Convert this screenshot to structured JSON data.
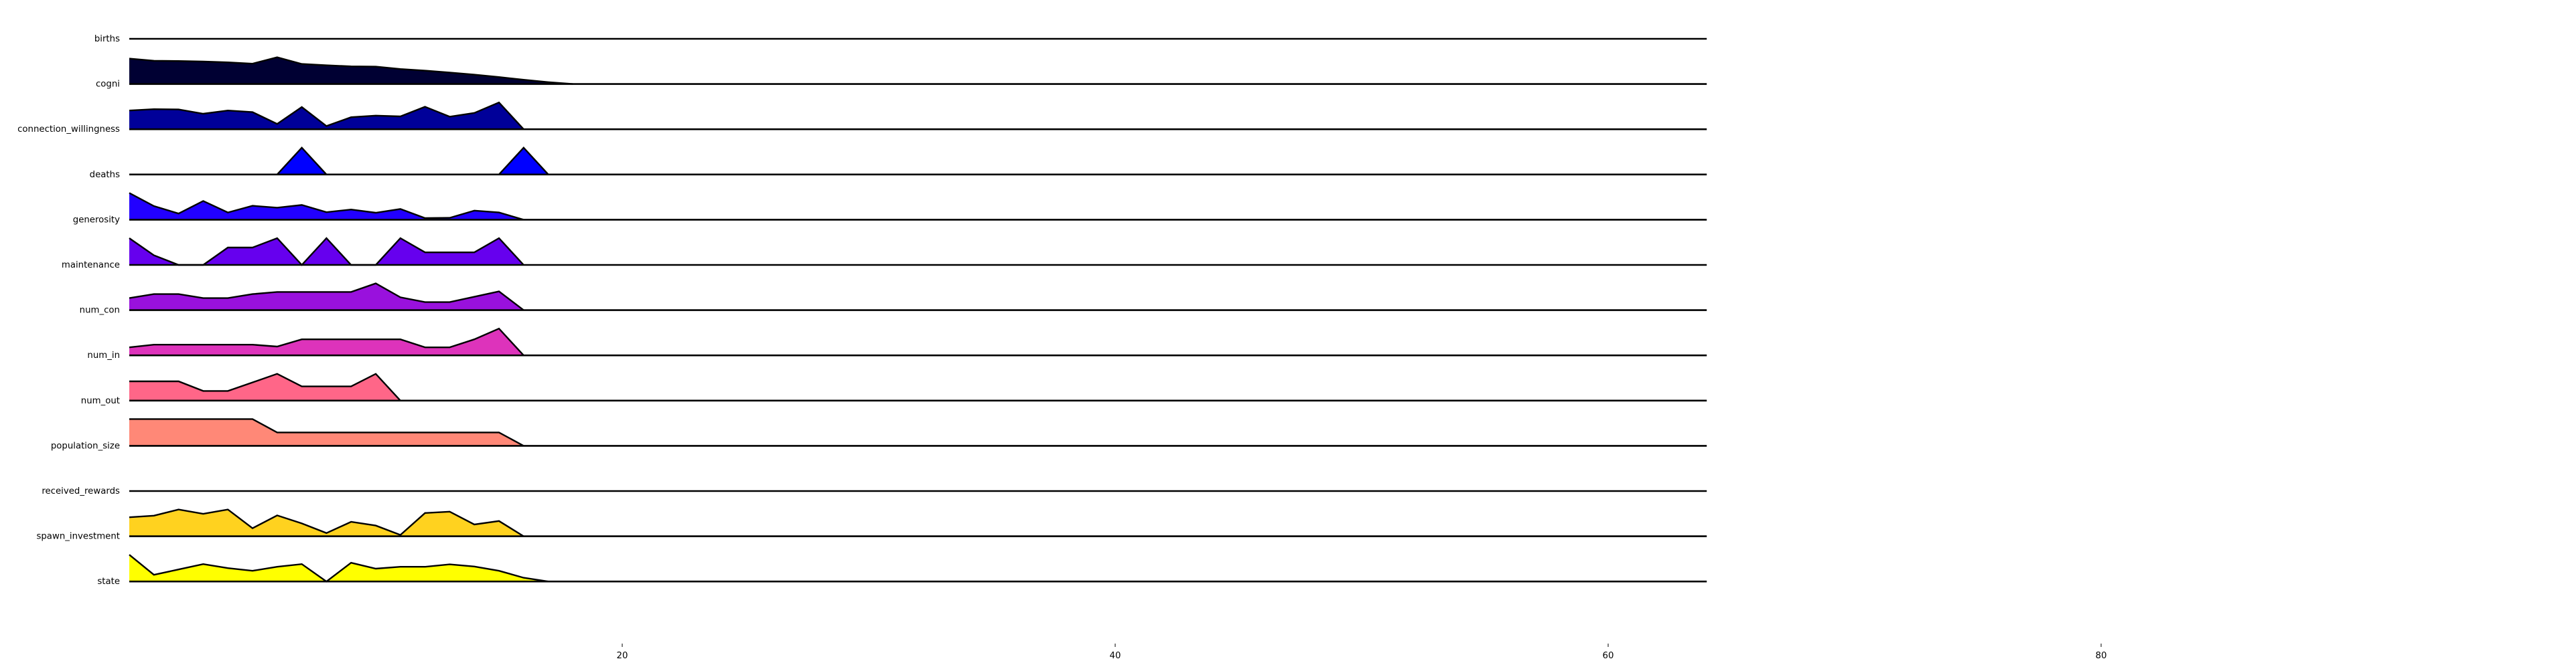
{
  "chart_data": {
    "type": "area",
    "title": "",
    "xlabel": "",
    "ylabel": "",
    "xlim": [
      0,
      98.3
    ],
    "x_ticks": [
      20,
      40,
      60,
      80
    ],
    "x_tick_labels": [
      "20",
      "40",
      "60",
      "80"
    ],
    "x_end": 64,
    "grid": false,
    "legend": "none",
    "series": [
      {
        "name": "births",
        "color": "#000066",
        "end": 64,
        "values": []
      },
      {
        "name": "cogni",
        "color": "#000033",
        "end": 64,
        "values": [
          0.95,
          0.87,
          0.86,
          0.84,
          0.81,
          0.76,
          1.0,
          0.75,
          0.7,
          0.66,
          0.65,
          0.56,
          0.5,
          0.43,
          0.35,
          0.26,
          0.16,
          0.07,
          0.0
        ]
      },
      {
        "name": "connection_willingness",
        "color": "#000099",
        "end": 64,
        "values": [
          0.7,
          0.75,
          0.74,
          0.58,
          0.7,
          0.64,
          0.2,
          0.83,
          0.12,
          0.45,
          0.51,
          0.48,
          0.84,
          0.47,
          0.61,
          1.0,
          0.0
        ]
      },
      {
        "name": "deaths",
        "color": "#0000ff",
        "end": 64,
        "values": [
          0,
          0,
          0,
          0,
          0,
          0,
          0,
          1.0,
          0,
          0,
          0,
          0,
          0,
          0,
          0,
          0,
          1.0,
          0
        ]
      },
      {
        "name": "generosity",
        "color": "#2200ff",
        "end": 64,
        "values": [
          1.0,
          0.51,
          0.23,
          0.7,
          0.27,
          0.52,
          0.45,
          0.55,
          0.28,
          0.38,
          0.26,
          0.4,
          0.06,
          0.07,
          0.34,
          0.27,
          0.0
        ]
      },
      {
        "name": "maintenance",
        "color": "#6600ee",
        "end": 64,
        "values": [
          1.0,
          0.36,
          0.0,
          0.0,
          0.65,
          0.65,
          1.0,
          0.0,
          1.0,
          0.0,
          0.0,
          1.0,
          0.47,
          0.47,
          0.47,
          1.0,
          0.0
        ]
      },
      {
        "name": "num_con",
        "color": "#9911dd",
        "end": 64,
        "values": [
          0.45,
          0.6,
          0.6,
          0.45,
          0.45,
          0.6,
          0.68,
          0.68,
          0.68,
          0.68,
          1.0,
          0.48,
          0.3,
          0.3,
          0.5,
          0.7,
          0.0
        ]
      },
      {
        "name": "num_in",
        "color": "#dd33bb",
        "end": 64,
        "values": [
          0.3,
          0.4,
          0.4,
          0.4,
          0.4,
          0.4,
          0.33,
          0.6,
          0.6,
          0.6,
          0.6,
          0.6,
          0.3,
          0.3,
          0.6,
          1.0,
          0.0
        ]
      },
      {
        "name": "num_out",
        "color": "#ff6688",
        "end": 64,
        "values": [
          0.72,
          0.72,
          0.72,
          0.36,
          0.36,
          0.68,
          1.0,
          0.53,
          0.53,
          0.53,
          1.0,
          0.0
        ]
      },
      {
        "name": "population_size",
        "color": "#ff8877",
        "end": 64,
        "values": [
          1.0,
          1.0,
          1.0,
          1.0,
          1.0,
          1.0,
          0.5,
          0.5,
          0.5,
          0.5,
          0.5,
          0.5,
          0.5,
          0.5,
          0.5,
          0.5,
          0.0
        ]
      },
      {
        "name": "received_rewards",
        "color": "#ffaa44",
        "end": 64,
        "values": []
      },
      {
        "name": "spawn_investment",
        "color": "#ffd21f",
        "end": 64,
        "values": [
          0.71,
          0.77,
          1.0,
          0.84,
          1.0,
          0.3,
          0.78,
          0.48,
          0.12,
          0.54,
          0.4,
          0.05,
          0.87,
          0.92,
          0.44,
          0.57,
          0.0
        ]
      },
      {
        "name": "state",
        "color": "#ffff00",
        "end": 64,
        "values": [
          1.0,
          0.25,
          0.45,
          0.65,
          0.5,
          0.4,
          0.55,
          0.65,
          0.0,
          0.7,
          0.48,
          0.55,
          0.55,
          0.64,
          0.56,
          0.4,
          0.14,
          0.0
        ]
      }
    ]
  }
}
